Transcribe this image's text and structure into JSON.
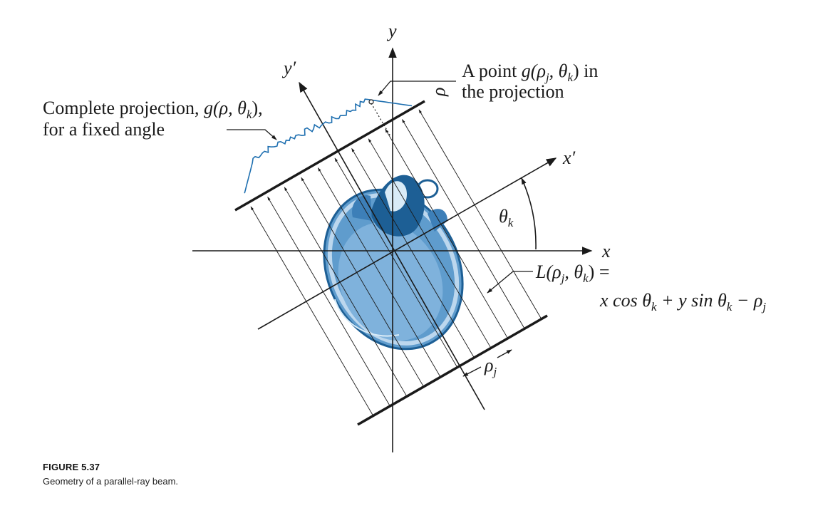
{
  "labels": {
    "y_axis": "y",
    "y_prime_axis": "y′",
    "x_axis": "x",
    "x_prime_axis": "x′",
    "theta_k": "θ",
    "theta_k_sub": "k",
    "rho": "ρ",
    "rho_j": "ρ",
    "rho_j_sub": "j",
    "point_label_line1_prefix": "A point ",
    "point_label_line1_math": "g(ρ",
    "point_label_line1_sub1": "j",
    "point_label_line1_mid": ", θ",
    "point_label_line1_sub2": "k",
    "point_label_line1_end": ") in",
    "point_label_line2": "the projection",
    "complete_projection_line1": "Complete projection, ",
    "complete_projection_math": "g(ρ, θ",
    "complete_projection_sub": "k",
    "complete_projection_end": "),",
    "complete_projection_line2": "for a fixed angle",
    "line_eq_1_prefix": "L(ρ",
    "line_eq_1_sub1": "j",
    "line_eq_1_mid": ", θ",
    "line_eq_1_sub2": "k",
    "line_eq_1_end": ") =",
    "line_eq_2_a": "x cos θ",
    "line_eq_2_sub1": "k",
    "line_eq_2_b": " + y sin θ",
    "line_eq_2_sub2": "k",
    "line_eq_2_c": " − ρ",
    "line_eq_2_sub3": "j"
  },
  "caption": {
    "title": "FIGURE 5.37",
    "text": "Geometry of a parallel-ray beam."
  },
  "colors": {
    "projection_curve": "#1e6fb0",
    "head_fill": "#6fa8d6",
    "head_dark": "#1d5f95",
    "ink": "#1a1a1a"
  }
}
